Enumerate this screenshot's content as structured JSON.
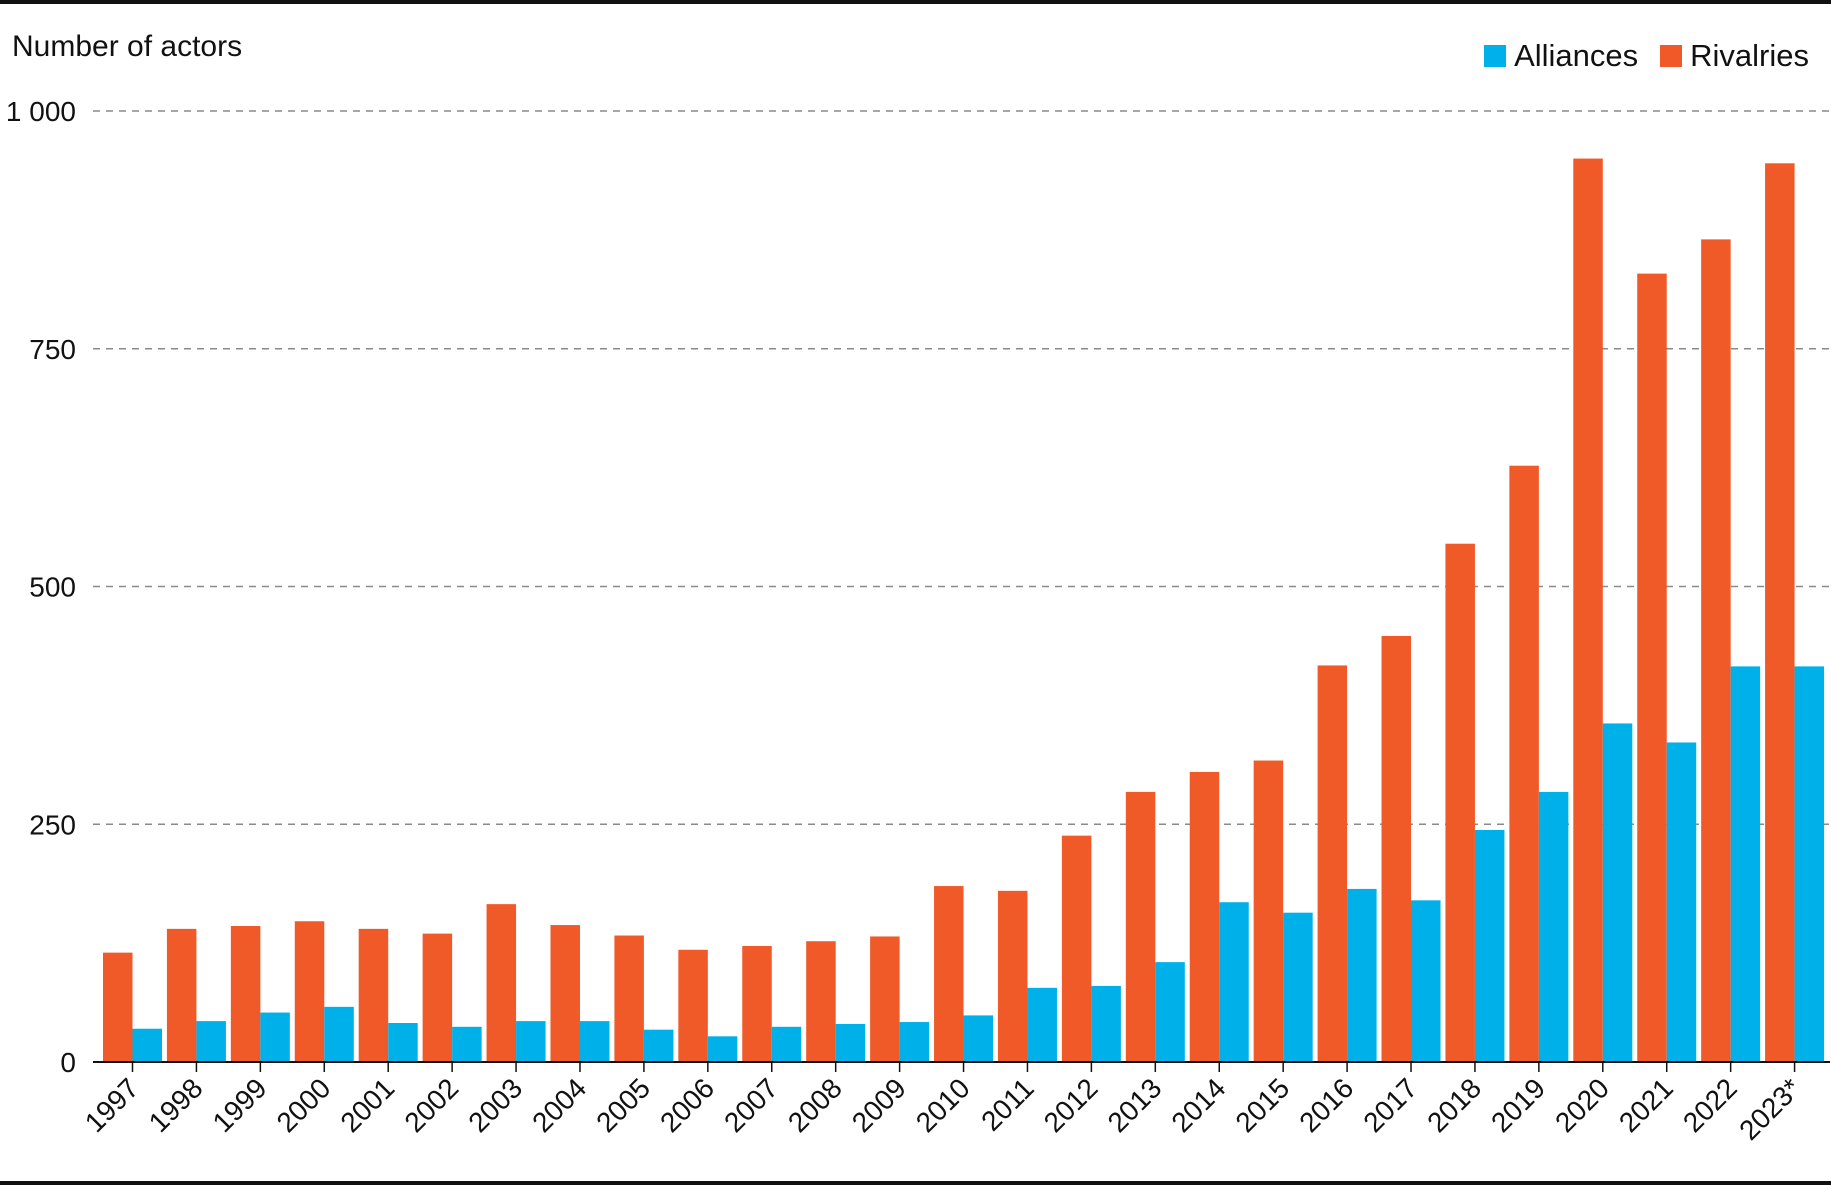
{
  "chart_data": {
    "type": "bar",
    "title": "",
    "xlabel": "",
    "ylabel": "Number of actors",
    "ylim": [
      0,
      1000
    ],
    "yticks": [
      0,
      250,
      500,
      750,
      1000
    ],
    "ytick_labels": [
      "0",
      "250",
      "500",
      "750",
      "1 000"
    ],
    "grid": "horizontal dashed",
    "legend_position": "top-right",
    "categories": [
      "1997",
      "1998",
      "1999",
      "2000",
      "2001",
      "2002",
      "2003",
      "2004",
      "2005",
      "2006",
      "2007",
      "2008",
      "2009",
      "2010",
      "2011",
      "2012",
      "2013",
      "2014",
      "2015",
      "2016",
      "2017",
      "2018",
      "2019",
      "2020",
      "2021",
      "2022",
      "2023*"
    ],
    "series": [
      {
        "name": "Rivalries",
        "color": "#f05a28",
        "values": [
          115,
          140,
          143,
          148,
          140,
          135,
          166,
          144,
          133,
          118,
          122,
          127,
          132,
          185,
          180,
          238,
          284,
          305,
          317,
          417,
          448,
          545,
          627,
          950,
          829,
          865,
          945
        ]
      },
      {
        "name": "Alliances",
        "color": "#00b0e8",
        "values": [
          35,
          43,
          52,
          58,
          41,
          37,
          43,
          43,
          34,
          27,
          37,
          40,
          42,
          49,
          78,
          80,
          105,
          168,
          157,
          182,
          170,
          244,
          284,
          356,
          336,
          416,
          416
        ]
      }
    ],
    "legend_order": [
      "Alliances",
      "Rivalries"
    ]
  }
}
